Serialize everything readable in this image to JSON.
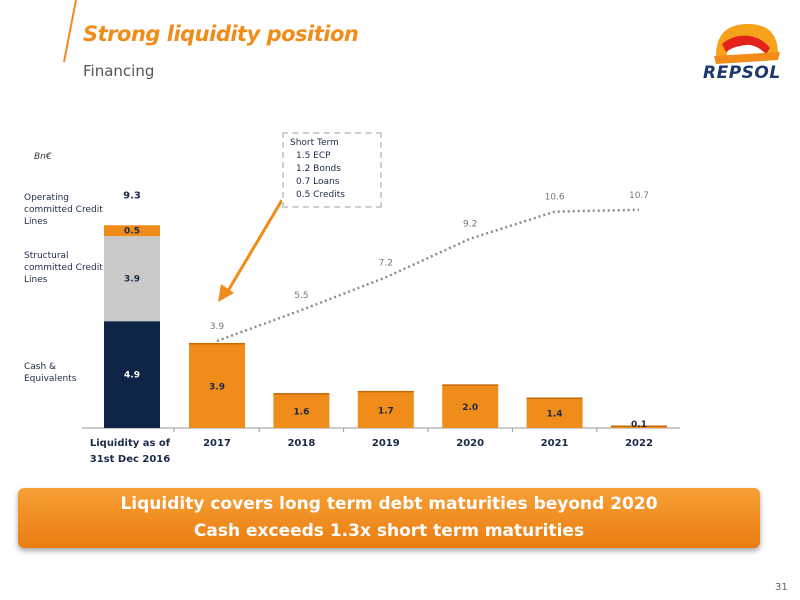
{
  "header": {
    "title": "Strong liquidity position",
    "subtitle": "Financing"
  },
  "logo": {
    "text": "REPSOL"
  },
  "unit_label": "Bn€",
  "legend": {
    "operating": "Operating committed Credit Lines",
    "structural": "Structural committed Credit Lines",
    "cash": "Cash & Equivalents"
  },
  "callout": {
    "title": "Short Term",
    "items": [
      "1.5 ECP",
      "1.2 Bonds",
      "0.7 Loans",
      "0.5 Credits"
    ]
  },
  "chart_data": {
    "type": "bar",
    "liquidity": {
      "label_line1": "Liquidity as of",
      "label_line2": "31st Dec 2016",
      "total": 9.3,
      "segments": [
        {
          "name": "Cash & Equivalents",
          "value": 4.9,
          "color": "#0f2548"
        },
        {
          "name": "Structural committed Credit Lines",
          "value": 3.9,
          "color": "#c9c9c9"
        },
        {
          "name": "Operating committed Credit Lines",
          "value": 0.5,
          "color": "#f08c1a"
        }
      ]
    },
    "categories": [
      "2017",
      "2018",
      "2019",
      "2020",
      "2021",
      "2022"
    ],
    "values": [
      3.9,
      1.6,
      1.7,
      2.0,
      1.4,
      0.1
    ],
    "cumulative": [
      3.9,
      5.5,
      7.2,
      9.2,
      10.6,
      10.7
    ],
    "bar_color": "#f08c1a",
    "line_color": "#8c8c8c",
    "ylim": [
      0,
      12
    ]
  },
  "banner": {
    "line1": "Liquidity covers long term debt maturities beyond 2020",
    "line2": "Cash exceeds 1.3x short term maturities"
  },
  "page_number": "31"
}
